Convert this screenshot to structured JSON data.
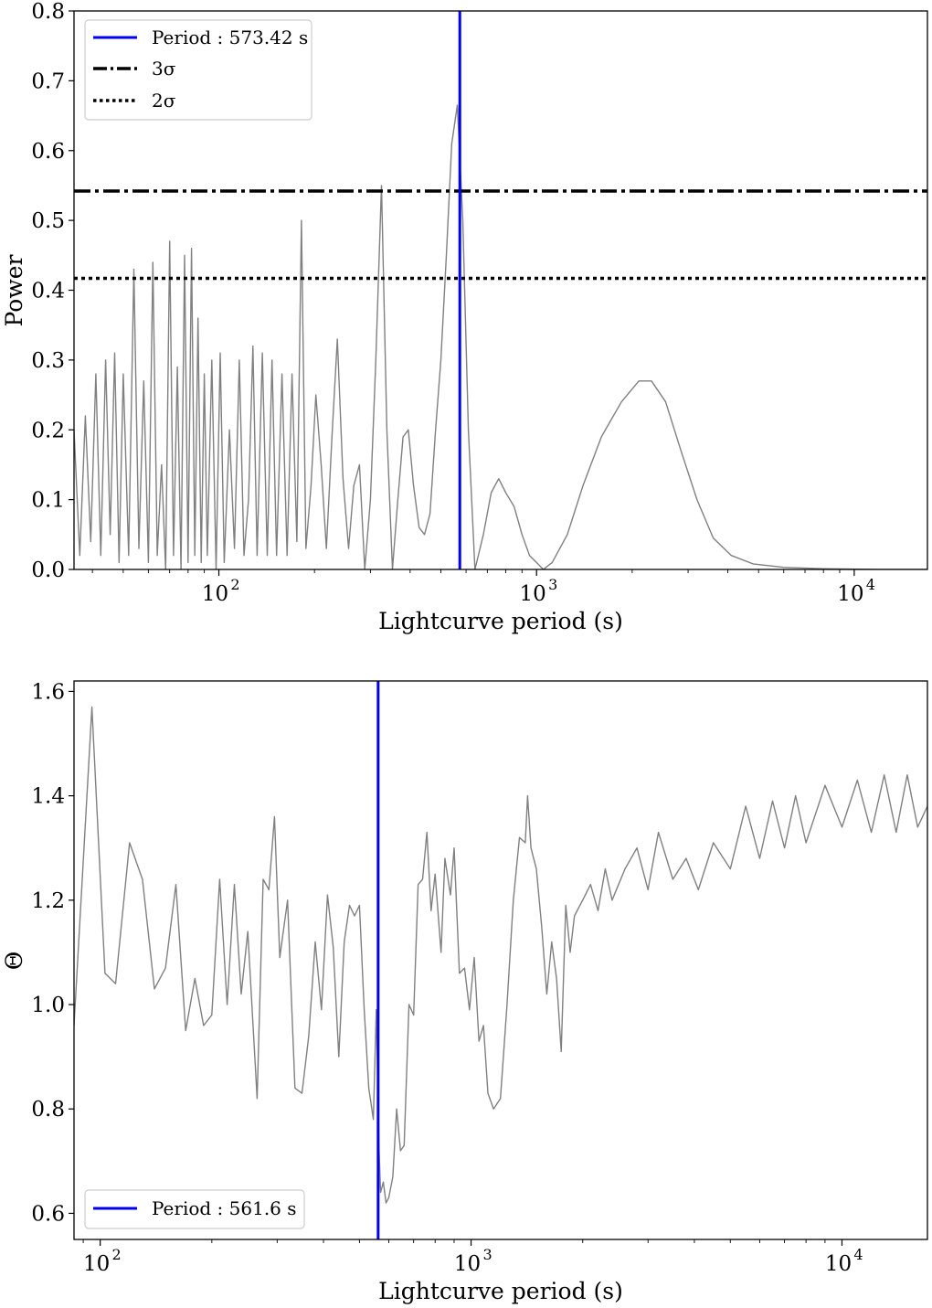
{
  "chart_data": [
    {
      "type": "line",
      "panel": "top",
      "xlabel": "Lightcurve period (s)",
      "ylabel": "Power",
      "xscale": "log",
      "xlim": [
        35,
        17000
      ],
      "ylim": [
        0,
        0.8
      ],
      "xticks": [
        100,
        1000,
        10000
      ],
      "xtick_labels": [
        "10",
        "10",
        "10"
      ],
      "xtick_exponents": [
        "2",
        "3",
        "4"
      ],
      "yticks": [
        0.0,
        0.1,
        0.2,
        0.3,
        0.4,
        0.5,
        0.6,
        0.7,
        0.8
      ],
      "ytick_labels": [
        "0.0",
        "0.1",
        "0.2",
        "0.3",
        "0.4",
        "0.5",
        "0.6",
        "0.7",
        "0.8"
      ],
      "grid": false,
      "legend_position": "top-left",
      "series": [
        {
          "color": "#808080",
          "points": [
            [
              35,
              0.2
            ],
            [
              36.5,
              0.02
            ],
            [
              38,
              0.22
            ],
            [
              39.5,
              0.04
            ],
            [
              41,
              0.28
            ],
            [
              42.5,
              0.02
            ],
            [
              44,
              0.3
            ],
            [
              45.5,
              0.05
            ],
            [
              47,
              0.31
            ],
            [
              48.5,
              0.01
            ],
            [
              50,
              0.28
            ],
            [
              52,
              0.02
            ],
            [
              54,
              0.43
            ],
            [
              56,
              0.03
            ],
            [
              58,
              0.27
            ],
            [
              60,
              0.01
            ],
            [
              62,
              0.44
            ],
            [
              64,
              0.02
            ],
            [
              66,
              0.15
            ],
            [
              68,
              0.0
            ],
            [
              70,
              0.47
            ],
            [
              72,
              0.02
            ],
            [
              74,
              0.29
            ],
            [
              76,
              0.0
            ],
            [
              78,
              0.45
            ],
            [
              80,
              0.01
            ],
            [
              82,
              0.46
            ],
            [
              84,
              0.02
            ],
            [
              86,
              0.36
            ],
            [
              88,
              0.01
            ],
            [
              90,
              0.28
            ],
            [
              92,
              0.02
            ],
            [
              95,
              0.3
            ],
            [
              98,
              0.0
            ],
            [
              101,
              0.31
            ],
            [
              104,
              0.01
            ],
            [
              108,
              0.2
            ],
            [
              112,
              0.03
            ],
            [
              116,
              0.3
            ],
            [
              120,
              0.02
            ],
            [
              124,
              0.1
            ],
            [
              128,
              0.32
            ],
            [
              132,
              0.02
            ],
            [
              137,
              0.31
            ],
            [
              142,
              0.02
            ],
            [
              147,
              0.3
            ],
            [
              152,
              0.02
            ],
            [
              158,
              0.28
            ],
            [
              164,
              0.02
            ],
            [
              170,
              0.28
            ],
            [
              176,
              0.04
            ],
            [
              182,
              0.5
            ],
            [
              188,
              0.03
            ],
            [
              195,
              0.12
            ],
            [
              202,
              0.25
            ],
            [
              210,
              0.15
            ],
            [
              218,
              0.03
            ],
            [
              227,
              0.19
            ],
            [
              236,
              0.33
            ],
            [
              246,
              0.13
            ],
            [
              256,
              0.03
            ],
            [
              266,
              0.12
            ],
            [
              277,
              0.15
            ],
            [
              288,
              0.0
            ],
            [
              300,
              0.1
            ],
            [
              312,
              0.3
            ],
            [
              325,
              0.55
            ],
            [
              338,
              0.2
            ],
            [
              352,
              0.0
            ],
            [
              366,
              0.1
            ],
            [
              380,
              0.19
            ],
            [
              395,
              0.2
            ],
            [
              410,
              0.12
            ],
            [
              427,
              0.06
            ],
            [
              444,
              0.05
            ],
            [
              462,
              0.08
            ],
            [
              481,
              0.2
            ],
            [
              500,
              0.3
            ],
            [
              520,
              0.45
            ],
            [
              541,
              0.61
            ],
            [
              563,
              0.665
            ],
            [
              586,
              0.5
            ],
            [
              610,
              0.2
            ],
            [
              640,
              0.0
            ],
            [
              680,
              0.05
            ],
            [
              720,
              0.11
            ],
            [
              760,
              0.13
            ],
            [
              800,
              0.11
            ],
            [
              850,
              0.09
            ],
            [
              900,
              0.05
            ],
            [
              950,
              0.02
            ],
            [
              1000,
              0.01
            ],
            [
              1050,
              0.0
            ],
            [
              1120,
              0.01
            ],
            [
              1250,
              0.05
            ],
            [
              1400,
              0.12
            ],
            [
              1600,
              0.19
            ],
            [
              1850,
              0.24
            ],
            [
              2100,
              0.27
            ],
            [
              2300,
              0.27
            ],
            [
              2550,
              0.24
            ],
            [
              2850,
              0.17
            ],
            [
              3200,
              0.1
            ],
            [
              3600,
              0.045
            ],
            [
              4100,
              0.02
            ],
            [
              4800,
              0.008
            ],
            [
              6000,
              0.003
            ],
            [
              8000,
              0.001
            ],
            [
              12000,
              0.0
            ],
            [
              17000,
              0.0
            ]
          ]
        }
      ],
      "hlines": [
        {
          "name": "3σ",
          "y": 0.542,
          "style": "dashdot",
          "color": "#000000"
        },
        {
          "name": "2σ",
          "y": 0.417,
          "style": "dotted",
          "color": "#000000"
        }
      ],
      "vline": {
        "label": "Period :  573.42 s",
        "x": 573.42,
        "color": "#0000ee"
      },
      "legend": [
        {
          "label": "Period :  573.42 s",
          "style": "solid",
          "color": "#0000ee"
        },
        {
          "label": "3σ",
          "style": "dashdot",
          "color": "#000000"
        },
        {
          "label": "2σ",
          "style": "dotted",
          "color": "#000000"
        }
      ]
    },
    {
      "type": "line",
      "panel": "bottom",
      "xlabel": "Lightcurve period (s)",
      "ylabel": "Θ",
      "xscale": "log",
      "xlim": [
        85,
        17000
      ],
      "ylim": [
        0.55,
        1.62
      ],
      "xticks": [
        100,
        1000,
        10000
      ],
      "xtick_labels": [
        "10",
        "10",
        "10"
      ],
      "xtick_exponents": [
        "2",
        "3",
        "4"
      ],
      "yticks": [
        0.6,
        0.8,
        1.0,
        1.2,
        1.4,
        1.6
      ],
      "ytick_labels": [
        "0.6",
        "0.8",
        "1.0",
        "1.2",
        "1.4",
        "1.6"
      ],
      "grid": false,
      "legend_position": "bottom-left",
      "series": [
        {
          "color": "#808080",
          "points": [
            [
              85,
              0.96
            ],
            [
              95,
              1.57
            ],
            [
              103,
              1.06
            ],
            [
              110,
              1.04
            ],
            [
              120,
              1.31
            ],
            [
              130,
              1.24
            ],
            [
              140,
              1.03
            ],
            [
              150,
              1.07
            ],
            [
              160,
              1.23
            ],
            [
              170,
              0.95
            ],
            [
              180,
              1.05
            ],
            [
              190,
              0.96
            ],
            [
              200,
              0.98
            ],
            [
              210,
              1.24
            ],
            [
              220,
              1.0
            ],
            [
              230,
              1.23
            ],
            [
              240,
              1.02
            ],
            [
              250,
              1.14
            ],
            [
              265,
              0.82
            ],
            [
              275,
              1.24
            ],
            [
              285,
              1.22
            ],
            [
              295,
              1.36
            ],
            [
              305,
              1.09
            ],
            [
              320,
              1.2
            ],
            [
              335,
              0.84
            ],
            [
              350,
              0.83
            ],
            [
              365,
              0.94
            ],
            [
              380,
              1.12
            ],
            [
              395,
              0.99
            ],
            [
              410,
              1.21
            ],
            [
              425,
              1.11
            ],
            [
              440,
              0.9
            ],
            [
              455,
              1.12
            ],
            [
              470,
              1.19
            ],
            [
              485,
              1.17
            ],
            [
              500,
              1.19
            ],
            [
              515,
              0.99
            ],
            [
              530,
              0.84
            ],
            [
              545,
              0.78
            ],
            [
              555,
              0.99
            ],
            [
              565,
              0.72
            ],
            [
              570,
              0.64
            ],
            [
              580,
              0.66
            ],
            [
              590,
              0.62
            ],
            [
              600,
              0.63
            ],
            [
              615,
              0.67
            ],
            [
              630,
              0.8
            ],
            [
              645,
              0.72
            ],
            [
              660,
              0.73
            ],
            [
              680,
              1.0
            ],
            [
              700,
              0.98
            ],
            [
              720,
              1.23
            ],
            [
              740,
              1.24
            ],
            [
              760,
              1.33
            ],
            [
              780,
              1.18
            ],
            [
              800,
              1.25
            ],
            [
              830,
              1.1
            ],
            [
              850,
              1.28
            ],
            [
              880,
              1.21
            ],
            [
              900,
              1.3
            ],
            [
              930,
              1.06
            ],
            [
              960,
              1.07
            ],
            [
              990,
              0.99
            ],
            [
              1020,
              1.09
            ],
            [
              1050,
              0.93
            ],
            [
              1080,
              0.96
            ],
            [
              1110,
              0.83
            ],
            [
              1150,
              0.8
            ],
            [
              1200,
              0.82
            ],
            [
              1250,
              1.0
            ],
            [
              1300,
              1.2
            ],
            [
              1350,
              1.32
            ],
            [
              1400,
              1.31
            ],
            [
              1420,
              1.4
            ],
            [
              1450,
              1.3
            ],
            [
              1500,
              1.26
            ],
            [
              1550,
              1.15
            ],
            [
              1600,
              1.02
            ],
            [
              1650,
              1.12
            ],
            [
              1700,
              1.05
            ],
            [
              1750,
              0.91
            ],
            [
              1800,
              1.19
            ],
            [
              1850,
              1.1
            ],
            [
              1900,
              1.17
            ],
            [
              2000,
              1.2
            ],
            [
              2100,
              1.23
            ],
            [
              2200,
              1.18
            ],
            [
              2300,
              1.26
            ],
            [
              2400,
              1.2
            ],
            [
              2600,
              1.26
            ],
            [
              2800,
              1.3
            ],
            [
              3000,
              1.22
            ],
            [
              3200,
              1.33
            ],
            [
              3500,
              1.24
            ],
            [
              3800,
              1.28
            ],
            [
              4100,
              1.22
            ],
            [
              4500,
              1.31
            ],
            [
              5000,
              1.26
            ],
            [
              5500,
              1.38
            ],
            [
              6000,
              1.28
            ],
            [
              6500,
              1.39
            ],
            [
              7000,
              1.3
            ],
            [
              7500,
              1.4
            ],
            [
              8000,
              1.31
            ],
            [
              9000,
              1.42
            ],
            [
              10000,
              1.34
            ],
            [
              11000,
              1.43
            ],
            [
              12000,
              1.33
            ],
            [
              13000,
              1.44
            ],
            [
              14000,
              1.33
            ],
            [
              15000,
              1.44
            ],
            [
              16000,
              1.34
            ],
            [
              17000,
              1.38
            ]
          ]
        }
      ],
      "vline": {
        "label": "Period :  561.6 s",
        "x": 561.6,
        "color": "#0000ee"
      },
      "legend": [
        {
          "label": "Period :  561.6 s",
          "style": "solid",
          "color": "#0000ee"
        }
      ]
    }
  ]
}
